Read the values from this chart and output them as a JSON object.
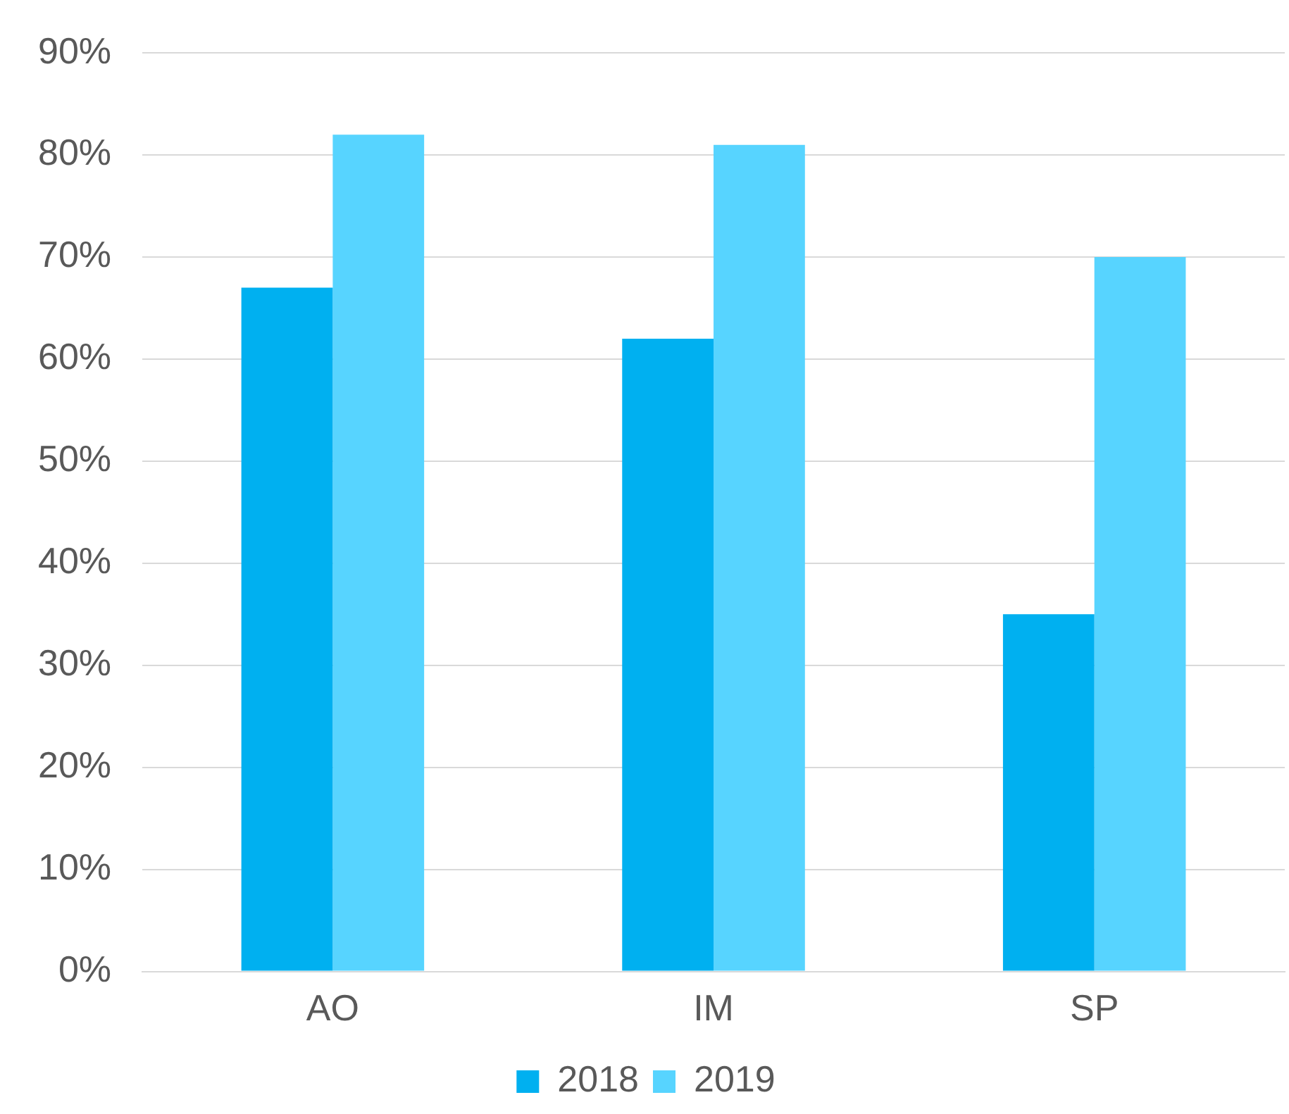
{
  "chart_data": {
    "type": "bar",
    "categories": [
      "AO",
      "IM",
      "SP"
    ],
    "series": [
      {
        "name": "2018",
        "color": "#00b0f0",
        "values": [
          67,
          62,
          35
        ]
      },
      {
        "name": "2019",
        "color": "#57d4ff",
        "values": [
          82,
          81,
          70
        ]
      }
    ],
    "ylim": [
      0,
      90
    ],
    "yticks": [
      {
        "value": 0,
        "label": "0%"
      },
      {
        "value": 10,
        "label": "10%"
      },
      {
        "value": 20,
        "label": "20%"
      },
      {
        "value": 30,
        "label": "30%"
      },
      {
        "value": 40,
        "label": "40%"
      },
      {
        "value": 50,
        "label": "50%"
      },
      {
        "value": 60,
        "label": "60%"
      },
      {
        "value": 70,
        "label": "70%"
      },
      {
        "value": 80,
        "label": "80%"
      },
      {
        "value": 90,
        "label": "90%"
      }
    ],
    "grid": "y",
    "legend": "bottom"
  }
}
